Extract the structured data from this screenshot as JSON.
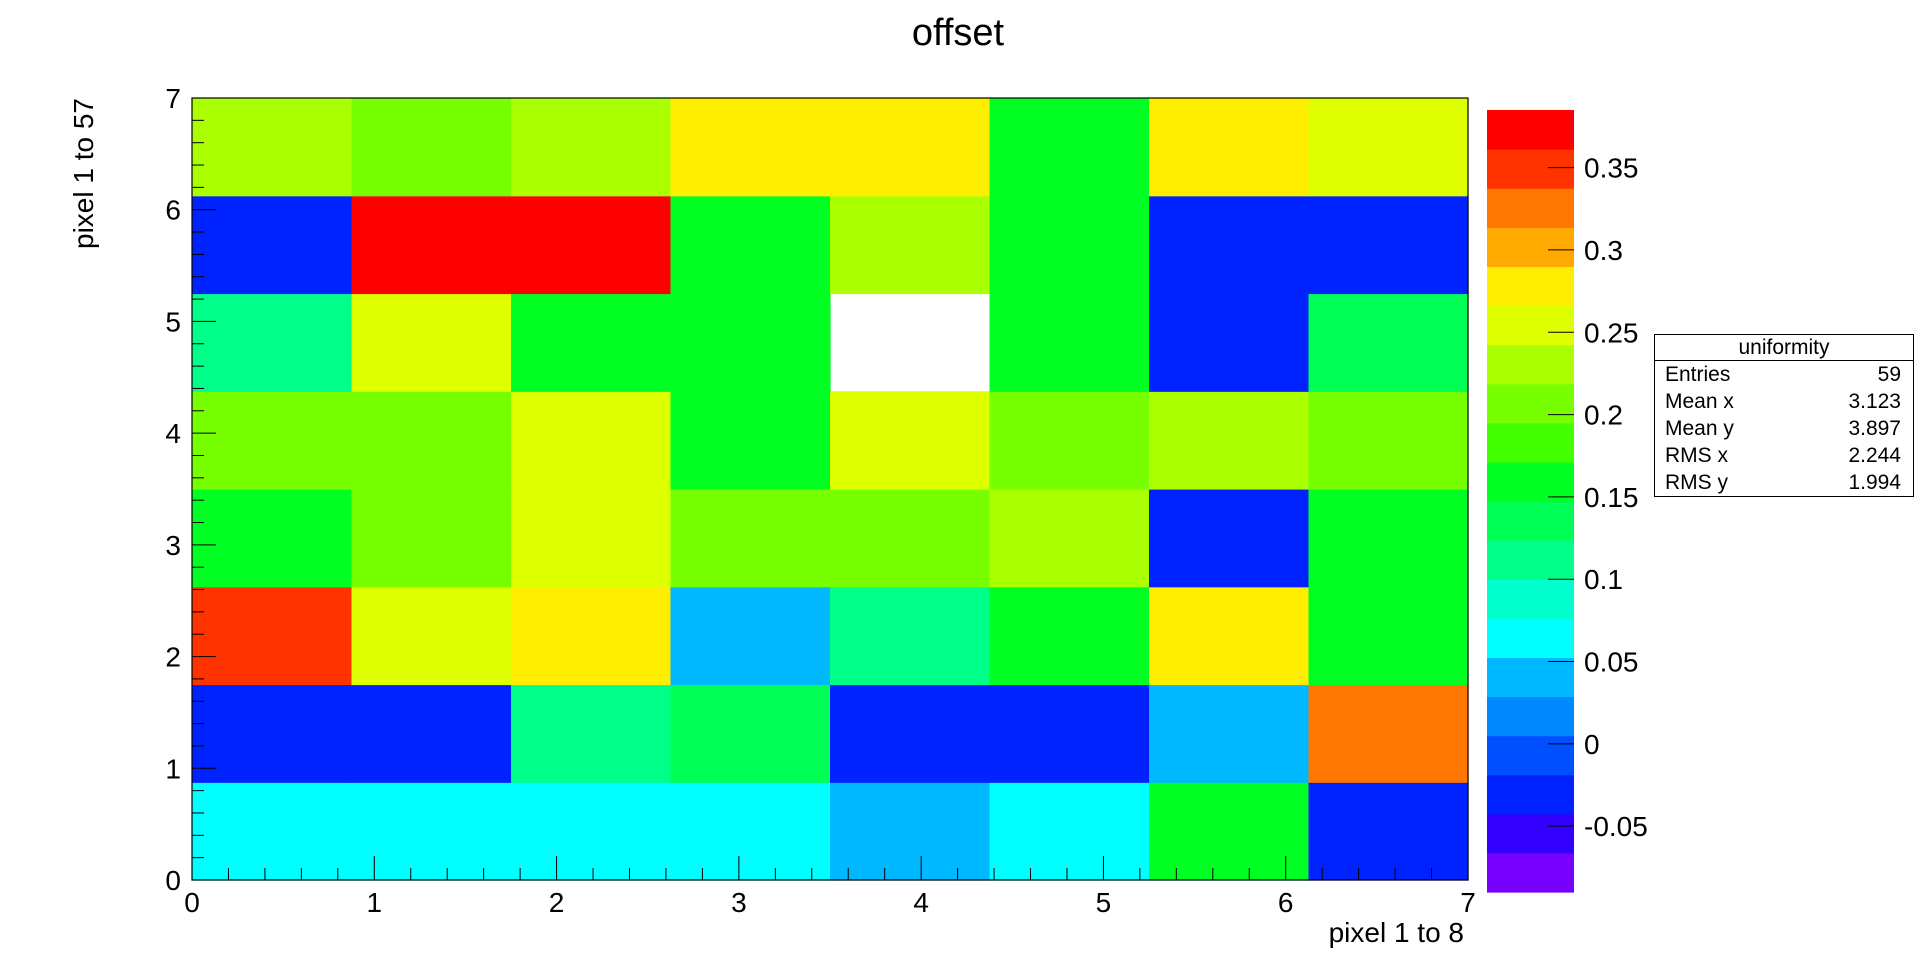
{
  "chart_data": {
    "type": "heatmap",
    "title": "offset",
    "xlabel": "pixel 1 to 8",
    "ylabel": "pixel 1 to 57",
    "xlim": [
      0,
      7
    ],
    "ylim": [
      0,
      7
    ],
    "x_ticks": [
      "0",
      "1",
      "2",
      "3",
      "4",
      "5",
      "6",
      "7"
    ],
    "y_ticks": [
      "0",
      "1",
      "2",
      "3",
      "4",
      "5",
      "6",
      "7"
    ],
    "n_cols": 8,
    "n_rows": 8,
    "cells": [
      [
        0.06,
        0.06,
        0.06,
        0.06,
        0.03,
        0.06,
        0.16,
        -0.04
      ],
      [
        -0.02,
        -0.02,
        0.1,
        0.14,
        -0.04,
        -0.02,
        0.03,
        0.32
      ],
      [
        0.36,
        0.26,
        0.28,
        0.03,
        0.1,
        0.16,
        0.28,
        0.16
      ],
      [
        0.17,
        0.21,
        0.26,
        0.21,
        0.21,
        0.23,
        -0.02,
        0.16
      ],
      [
        0.21,
        0.21,
        0.26,
        0.16,
        0.26,
        0.21,
        0.23,
        0.21
      ],
      [
        0.12,
        0.26,
        0.16,
        0.16,
        null,
        0.16,
        -0.02,
        0.14
      ],
      [
        -0.02,
        0.38,
        0.38,
        0.16,
        0.23,
        0.16,
        -0.02,
        -0.02
      ],
      [
        0.23,
        0.21,
        0.23,
        0.28,
        0.28,
        0.16,
        0.28,
        0.26
      ]
    ],
    "zlim": [
      -0.09,
      0.385
    ],
    "color_ticks": [
      "-0.05",
      "0",
      "0.05",
      "0.1",
      "0.15",
      "0.2",
      "0.25",
      "0.3",
      "0.35"
    ],
    "color_tick_values": [
      -0.05,
      0,
      0.05,
      0.1,
      0.15,
      0.2,
      0.25,
      0.3,
      0.35
    ],
    "palette": [
      "#7700ff",
      "#3300ff",
      "#0022ff",
      "#0050ff",
      "#0088ff",
      "#00b8ff",
      "#00ffff",
      "#00ffcc",
      "#00ff88",
      "#00ff55",
      "#00ff22",
      "#44ff00",
      "#77ff00",
      "#aaff00",
      "#ddff00",
      "#ffee00",
      "#ffaa00",
      "#ff7700",
      "#ff3300",
      "#ff0000"
    ],
    "grid": false,
    "legend": "none"
  },
  "stats": {
    "title": "uniformity",
    "rows": [
      {
        "label": "Entries",
        "value": "59"
      },
      {
        "label": "Mean x",
        "value": "3.123"
      },
      {
        "label": "Mean y",
        "value": "3.897"
      },
      {
        "label": "RMS x",
        "value": "2.244"
      },
      {
        "label": "RMS y",
        "value": "1.994"
      }
    ]
  }
}
